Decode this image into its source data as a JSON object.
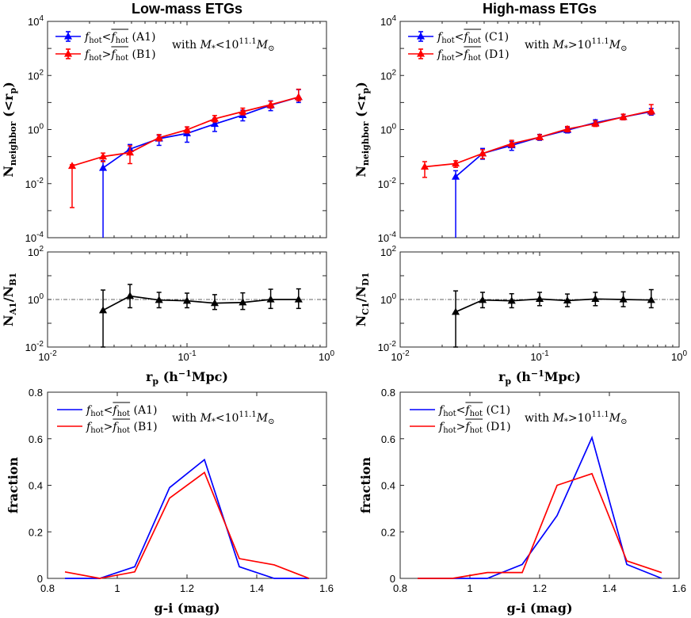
{
  "colors": {
    "blue": "#0000ff",
    "red": "#ff0000",
    "black": "#000000",
    "axis": "#262626"
  },
  "chart_data": [
    {
      "id": "lm_top",
      "type": "line",
      "title": "Low-mass ETGs",
      "ylabel": "N_neighbor (<r_p)",
      "xscale": "log",
      "yscale": "log",
      "xlim": [
        0.01,
        1
      ],
      "ylim": [
        0.0001,
        10000
      ],
      "yticks": [
        {
          "base": "10",
          "exp": "-4",
          "v": 0.0001
        },
        {
          "base": "10",
          "exp": "-2",
          "v": 0.01
        },
        {
          "base": "10",
          "exp": "0",
          "v": 1
        },
        {
          "base": "10",
          "exp": "2",
          "v": 100
        },
        {
          "base": "10",
          "exp": "4",
          "v": 10000
        }
      ],
      "legend": [
        {
          "name": "f_hot < f_hot_mean (A1)",
          "label": "(A1)",
          "color": "blue",
          "op": "<"
        },
        {
          "name": "f_hot > f_hot_mean (B1)",
          "label": "(B1)",
          "color": "red",
          "op": ">"
        }
      ],
      "annotation": {
        "prefix": "with",
        "op": "<",
        "exp": "11.1"
      },
      "series": [
        {
          "name": "A1",
          "color": "blue",
          "marker": "triangle",
          "x": [
            0.025,
            0.039,
            0.063,
            0.1,
            0.158,
            0.251,
            0.398,
            0.631
          ],
          "y": [
            0.038,
            0.19,
            0.46,
            0.72,
            1.6,
            3.4,
            7.9,
            15.8
          ],
          "ylo": [
            0.0001,
            0.12,
            0.26,
            0.34,
            0.85,
            2.1,
            5.0,
            10.0
          ],
          "yhi": [
            0.07,
            0.28,
            0.62,
            1.25,
            2.6,
            5.2,
            11.5,
            30.0
          ]
        },
        {
          "name": "B1",
          "color": "red",
          "marker": "triangle",
          "x": [
            0.015,
            0.025,
            0.039,
            0.063,
            0.1,
            0.158,
            0.251,
            0.398,
            0.631
          ],
          "y": [
            0.045,
            0.1,
            0.14,
            0.5,
            0.98,
            2.5,
            4.6,
            8.3,
            15.8
          ],
          "ylo": [
            0.0013,
            0.065,
            0.055,
            0.38,
            0.75,
            1.9,
            3.5,
            6.2,
            11.5
          ],
          "yhi": [
            0.05,
            0.135,
            0.25,
            0.65,
            1.25,
            3.3,
            6.2,
            11.2,
            31.0
          ]
        }
      ]
    },
    {
      "id": "lm_ratio",
      "type": "line",
      "ylabel": "N_A1/N_B1",
      "num": "A1",
      "den": "B1",
      "xlabel": "r_p (h^-1 Mpc)",
      "xscale": "log",
      "yscale": "log",
      "xlim": [
        0.01,
        1
      ],
      "ylim": [
        0.01,
        100
      ],
      "refline": 1,
      "xticks": [
        {
          "base": "10",
          "exp": "-2",
          "v": 0.01
        },
        {
          "base": "10",
          "exp": "-1",
          "v": 0.1
        },
        {
          "base": "10",
          "exp": "0",
          "v": 1
        }
      ],
      "yticks": [
        {
          "base": "10",
          "exp": "-2",
          "v": 0.01
        },
        {
          "base": "10",
          "exp": "0",
          "v": 1
        },
        {
          "base": "10",
          "exp": "2",
          "v": 100
        }
      ],
      "series": [
        {
          "name": "A1/B1",
          "color": "black",
          "marker": "triangle",
          "x": [
            0.025,
            0.039,
            0.063,
            0.1,
            0.158,
            0.251,
            0.398,
            0.631
          ],
          "y": [
            0.35,
            1.4,
            0.95,
            0.88,
            0.7,
            0.75,
            1.0,
            1.0
          ],
          "ylo": [
            0.01,
            0.45,
            0.45,
            0.45,
            0.38,
            0.38,
            0.42,
            0.42
          ],
          "yhi": [
            2.5,
            4.3,
            2.0,
            1.85,
            1.6,
            1.9,
            2.7,
            2.8
          ]
        }
      ]
    },
    {
      "id": "lm_hist",
      "type": "line",
      "xlabel": "g-i (mag)",
      "ylabel": "fraction",
      "xlim": [
        0.8,
        1.6
      ],
      "ylim": [
        0,
        0.8
      ],
      "xticks": [
        "0.8",
        "1",
        "1.2",
        "1.4",
        "1.6"
      ],
      "xtickvals": [
        0.8,
        1.0,
        1.2,
        1.4,
        1.6
      ],
      "yticks": [
        "0",
        "0.2",
        "0.4",
        "0.6",
        "0.8"
      ],
      "ytickvals": [
        0,
        0.2,
        0.4,
        0.6,
        0.8
      ],
      "legend": [
        {
          "name": "f_hot < f_hot_mean (A1)",
          "label": "(A1)",
          "color": "blue",
          "op": "<"
        },
        {
          "name": "f_hot > f_hot_mean (B1)",
          "label": "(B1)",
          "color": "red",
          "op": ">"
        }
      ],
      "annotation": {
        "prefix": "with",
        "op": "<",
        "exp": "11.1"
      },
      "series": [
        {
          "name": "A1",
          "color": "blue",
          "x": [
            0.85,
            0.95,
            1.05,
            1.15,
            1.25,
            1.35,
            1.45,
            1.55
          ],
          "y": [
            0.0,
            0.0,
            0.05,
            0.39,
            0.51,
            0.05,
            0.0,
            0.0
          ]
        },
        {
          "name": "B1",
          "color": "red",
          "x": [
            0.85,
            0.95,
            1.05,
            1.15,
            1.25,
            1.35,
            1.45,
            1.55
          ],
          "y": [
            0.028,
            0.0,
            0.028,
            0.345,
            0.455,
            0.085,
            0.058,
            0.0
          ]
        }
      ]
    },
    {
      "id": "hm_top",
      "type": "line",
      "title": "High-mass ETGs",
      "ylabel": "N_neighbor (<r_p)",
      "xscale": "log",
      "yscale": "log",
      "xlim": [
        0.01,
        1
      ],
      "ylim": [
        0.0001,
        10000
      ],
      "yticks": [
        {
          "base": "10",
          "exp": "-4",
          "v": 0.0001
        },
        {
          "base": "10",
          "exp": "-2",
          "v": 0.01
        },
        {
          "base": "10",
          "exp": "0",
          "v": 1
        },
        {
          "base": "10",
          "exp": "2",
          "v": 100
        },
        {
          "base": "10",
          "exp": "4",
          "v": 10000
        }
      ],
      "legend": [
        {
          "name": "f_hot < f_hot_mean (C1)",
          "label": "(C1)",
          "color": "blue",
          "op": "<"
        },
        {
          "name": "f_hot > f_hot_mean (D1)",
          "label": "(D1)",
          "color": "red",
          "op": ">"
        }
      ],
      "annotation": {
        "prefix": "with",
        "op": ">",
        "exp": "11.1"
      },
      "series": [
        {
          "name": "C1",
          "color": "blue",
          "marker": "triangle",
          "x": [
            0.025,
            0.039,
            0.063,
            0.1,
            0.158,
            0.251,
            0.398,
            0.631
          ],
          "y": [
            0.018,
            0.13,
            0.26,
            0.52,
            0.95,
            1.8,
            2.9,
            4.6
          ],
          "ylo": [
            0.0001,
            0.08,
            0.17,
            0.4,
            0.75,
            1.4,
            2.3,
            3.4
          ],
          "yhi": [
            0.03,
            0.2,
            0.36,
            0.66,
            1.2,
            2.3,
            3.6,
            6.0
          ]
        },
        {
          "name": "D1",
          "color": "red",
          "marker": "triangle",
          "x": [
            0.015,
            0.025,
            0.039,
            0.063,
            0.1,
            0.158,
            0.251,
            0.398,
            0.631
          ],
          "y": [
            0.042,
            0.055,
            0.13,
            0.3,
            0.52,
            1.05,
            1.65,
            2.9,
            4.9
          ],
          "ylo": [
            0.017,
            0.04,
            0.085,
            0.22,
            0.42,
            0.82,
            1.3,
            2.3,
            3.6
          ],
          "yhi": [
            0.065,
            0.07,
            0.18,
            0.4,
            0.64,
            1.3,
            2.1,
            3.7,
            8.4
          ]
        }
      ]
    },
    {
      "id": "hm_ratio",
      "type": "line",
      "ylabel": "N_C1/N_D1",
      "num": "C1",
      "den": "D1",
      "xlabel": "r_p (h^-1 Mpc)",
      "xscale": "log",
      "yscale": "log",
      "xlim": [
        0.01,
        1
      ],
      "ylim": [
        0.01,
        100
      ],
      "refline": 1,
      "xticks": [
        {
          "base": "10",
          "exp": "-2",
          "v": 0.01
        },
        {
          "base": "10",
          "exp": "-1",
          "v": 0.1
        },
        {
          "base": "10",
          "exp": "0",
          "v": 1
        }
      ],
      "yticks": [
        {
          "base": "10",
          "exp": "-2",
          "v": 0.01
        },
        {
          "base": "10",
          "exp": "0",
          "v": 1
        },
        {
          "base": "10",
          "exp": "2",
          "v": 100
        }
      ],
      "series": [
        {
          "name": "C1/D1",
          "color": "black",
          "marker": "triangle",
          "x": [
            0.025,
            0.039,
            0.063,
            0.1,
            0.158,
            0.251,
            0.398,
            0.631
          ],
          "y": [
            0.3,
            0.95,
            0.88,
            1.05,
            0.9,
            1.05,
            1.0,
            0.95
          ],
          "ylo": [
            0.01,
            0.45,
            0.45,
            0.55,
            0.5,
            0.55,
            0.5,
            0.45
          ],
          "yhi": [
            2.3,
            2.0,
            1.75,
            2.0,
            1.7,
            2.0,
            2.1,
            2.6
          ]
        }
      ]
    },
    {
      "id": "hm_hist",
      "type": "line",
      "xlabel": "g-i (mag)",
      "ylabel": "fraction",
      "xlim": [
        0.8,
        1.6
      ],
      "ylim": [
        0,
        0.8
      ],
      "xticks": [
        "0.8",
        "1",
        "1.2",
        "1.4",
        "1.6"
      ],
      "xtickvals": [
        0.8,
        1.0,
        1.2,
        1.4,
        1.6
      ],
      "yticks": [
        "0",
        "0.2",
        "0.4",
        "0.6",
        "0.8"
      ],
      "ytickvals": [
        0,
        0.2,
        0.4,
        0.6,
        0.8
      ],
      "legend": [
        {
          "name": "f_hot < f_hot_mean (C1)",
          "label": "(C1)",
          "color": "blue",
          "op": "<"
        },
        {
          "name": "f_hot > f_hot_mean (D1)",
          "label": "(D1)",
          "color": "red",
          "op": ">"
        }
      ],
      "annotation": {
        "prefix": "with",
        "op": ">",
        "exp": "11.1"
      },
      "series": [
        {
          "name": "C1",
          "color": "blue",
          "x": [
            0.85,
            0.95,
            1.05,
            1.15,
            1.25,
            1.35,
            1.45,
            1.55
          ],
          "y": [
            0.0,
            0.0,
            0.0,
            0.06,
            0.27,
            0.605,
            0.06,
            0.0
          ]
        },
        {
          "name": "D1",
          "color": "red",
          "x": [
            0.85,
            0.95,
            1.05,
            1.15,
            1.25,
            1.35,
            1.45,
            1.55
          ],
          "y": [
            0.0,
            0.0,
            0.025,
            0.025,
            0.4,
            0.45,
            0.075,
            0.025
          ]
        }
      ]
    }
  ]
}
